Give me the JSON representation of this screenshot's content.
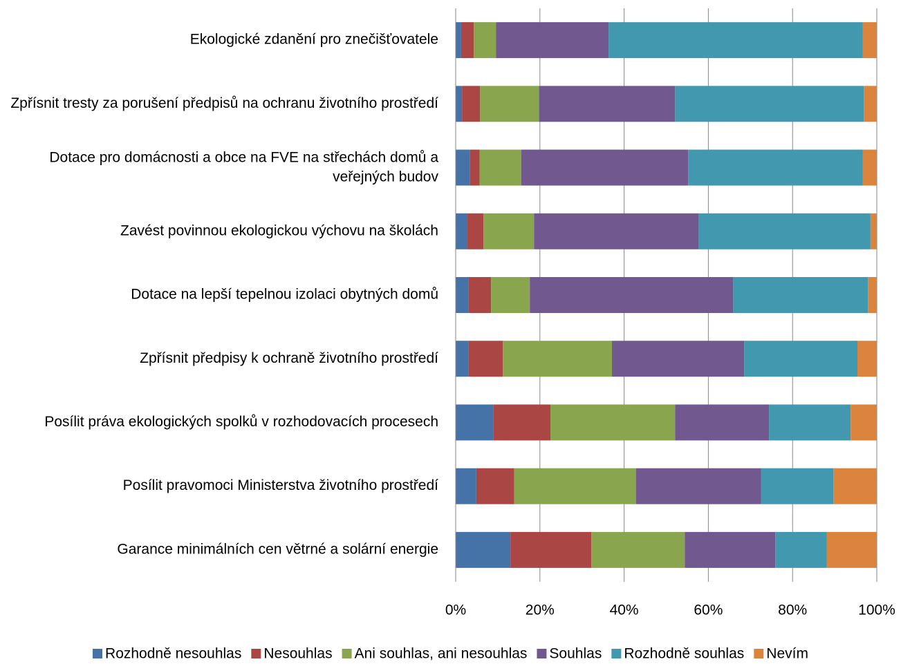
{
  "chart_data": {
    "type": "stacked_barh",
    "categories": [
      "Ekologické zdanění pro znečišťovatele",
      "Zpřísnit tresty za porušení předpisů na ochranu životního prostředí",
      "Dotace pro domácnosti a obce na FVE na střechách domů a veřejných budov",
      "Zavést povinnou ekologickou výchovu na školách",
      "Dotace na lepší tepelnou izolaci obytných domů",
      "Zpřísnit předpisy k ochraně životního prostředí",
      "Posílit práva ekologických spolků v rozhodovacích procesech",
      "Posílit pravomoci Ministerstva životního prostředí",
      "Garance minimálních cen větrné a solární energie"
    ],
    "series": [
      {
        "name": "Rozhodně nesouhlas",
        "color": "#4572a7",
        "values": [
          1.3,
          1.5,
          3.4,
          2.8,
          3.1,
          3.0,
          8.9,
          4.9,
          13.0
        ]
      },
      {
        "name": "Nesouhlas",
        "color": "#aa4643",
        "values": [
          3.0,
          4.3,
          2.3,
          3.8,
          5.3,
          8.2,
          13.6,
          9.0,
          19.2
        ]
      },
      {
        "name": "Ani souhlas, ani nesouhlas",
        "color": "#89a54e",
        "values": [
          5.3,
          14.0,
          9.9,
          12.0,
          9.2,
          25.9,
          29.6,
          28.9,
          22.2
        ]
      },
      {
        "name": "Souhlas",
        "color": "#71588f",
        "values": [
          26.7,
          32.3,
          39.6,
          39.1,
          48.3,
          31.4,
          22.3,
          29.7,
          21.5
        ]
      },
      {
        "name": "Rozhodně souhlas",
        "color": "#4198af",
        "values": [
          60.4,
          44.8,
          41.5,
          40.8,
          32.0,
          26.9,
          19.4,
          17.2,
          12.2
        ]
      },
      {
        "name": "Nevím",
        "color": "#db843d",
        "values": [
          3.3,
          3.1,
          3.3,
          1.5,
          2.1,
          4.6,
          6.2,
          10.3,
          11.9
        ]
      }
    ],
    "xlim": [
      0,
      100
    ],
    "xticks": [
      {
        "value": 0,
        "label": "0%"
      },
      {
        "value": 20,
        "label": "20%"
      },
      {
        "value": 40,
        "label": "40%"
      },
      {
        "value": 60,
        "label": "60%"
      },
      {
        "value": 80,
        "label": "80%"
      },
      {
        "value": 100,
        "label": "100%"
      }
    ],
    "grid": true,
    "legend": "bottom"
  }
}
